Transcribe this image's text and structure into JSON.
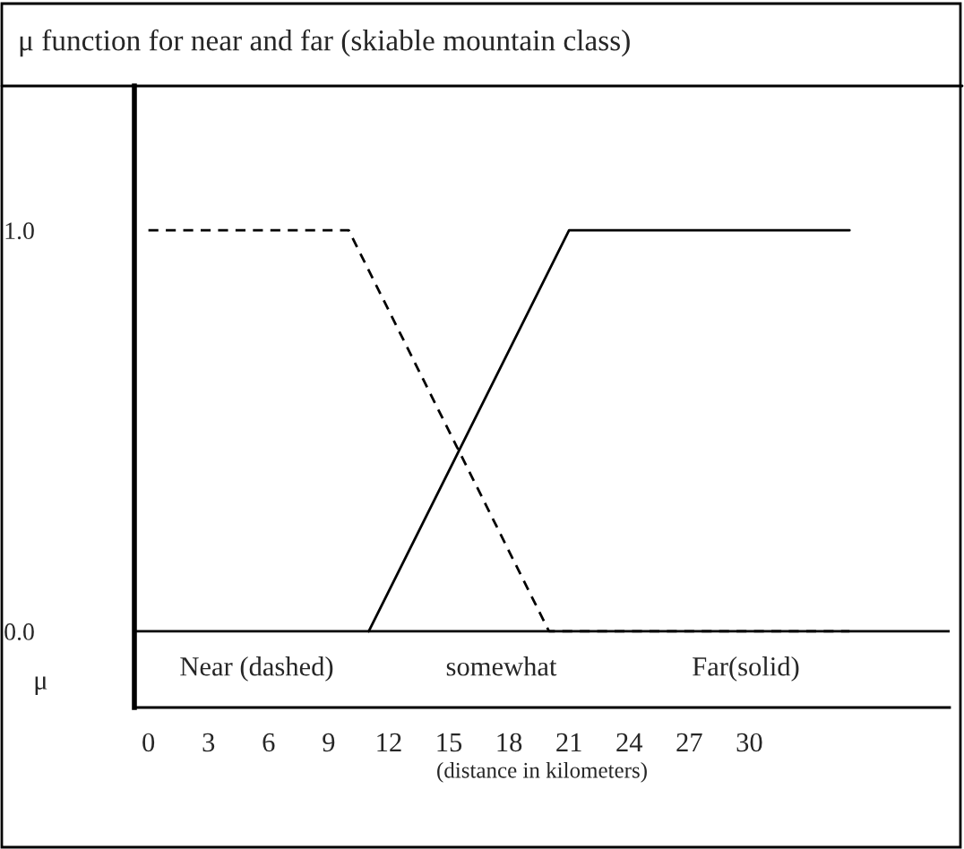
{
  "chart_data": {
    "type": "line",
    "title": "μ function for near and far (skiable mountain class)",
    "xlabel": "(distance in kilometers)",
    "ylabel": "μ",
    "series": [
      {
        "color": "#000000",
        "line_style": "dashed",
        "x": [
          0,
          10,
          20,
          35
        ],
        "values": [
          1,
          1,
          0,
          0
        ]
      },
      {
        "color": "#000000",
        "line_style": "solid",
        "x": [
          11,
          21,
          35
        ],
        "values": [
          0,
          1,
          1
        ]
      }
    ],
    "xlim": [
      -0.7,
      40
    ],
    "xticks": [
      0,
      3,
      6,
      9,
      12,
      15,
      18,
      21,
      24,
      27,
      30
    ],
    "ylim": [
      -0.19,
      1.36
    ],
    "yticks": [
      {
        "value": 0,
        "label": "0.0"
      },
      {
        "value": 1,
        "label": "1.0"
      }
    ],
    "ref_lines": [
      {
        "axis": "y",
        "value": 0,
        "color": "#000000"
      }
    ],
    "annotations": [
      "Near (dashed)",
      "somewhat",
      "Far(solid)"
    ],
    "grid": false,
    "legend": false,
    "marker": "none"
  }
}
